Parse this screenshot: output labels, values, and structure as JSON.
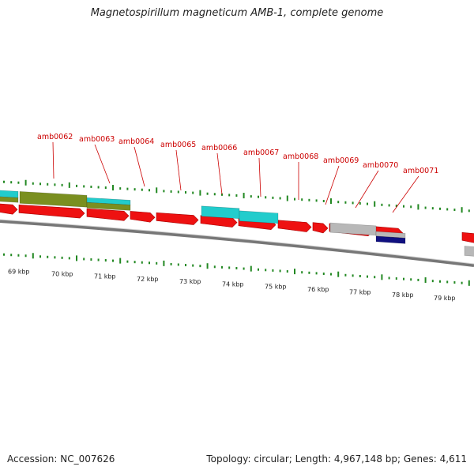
{
  "title": "Magnetospirillum magneticum AMB-1, complete genome",
  "footer": {
    "accession": "Accession: NC_007626",
    "topology": "Topology: circular; Length: 4,967,148 bp; Genes: 4,611"
  },
  "colors": {
    "cds_forward": "#ee1111",
    "cyan_feature": "#22cccc",
    "olive_feature": "#7a8f20",
    "grey_feature": "#b8b8b8",
    "navy_feature": "#101080",
    "tick": "#228822",
    "label": "#cc0000",
    "backbone": "#808080"
  },
  "kbp_ticks": [
    "69 kbp",
    "70 kbp",
    "71 kbp",
    "72 kbp",
    "73 kbp",
    "74 kbp",
    "75 kbp",
    "76 kbp",
    "77 kbp",
    "78 kbp",
    "79 kbp"
  ],
  "gene_labels": [
    "amb0062",
    "amb0063",
    "amb0064",
    "amb0065",
    "amb0066",
    "amb0067",
    "amb0068",
    "amb0069",
    "amb0070",
    "amb0071"
  ]
}
